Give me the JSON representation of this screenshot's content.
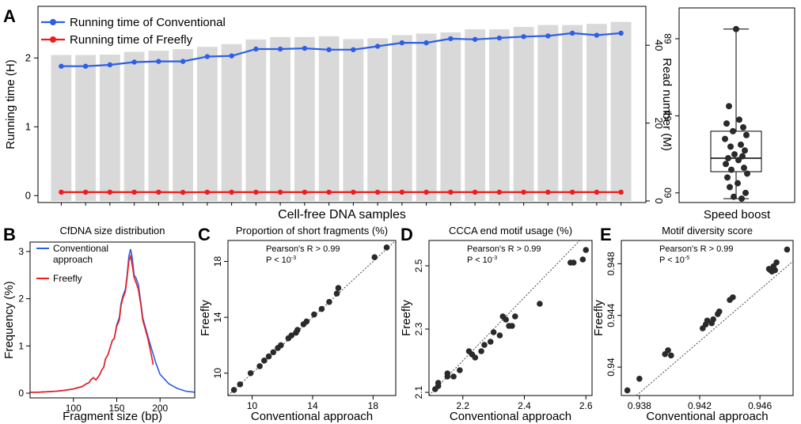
{
  "chart_data": [
    {
      "id": "A",
      "letter": "A",
      "type": "bar+line",
      "title": "",
      "xlabel": "Cell-free DNA samples",
      "ylabel": "Running time (H)",
      "y2label": "Read number (M)",
      "ylim": [
        -0.1,
        2.75
      ],
      "yticks": [
        0,
        1,
        2
      ],
      "y2lim": [
        0,
        50
      ],
      "y2ticks": [
        0,
        20,
        40
      ],
      "bars_read_number_M": [
        37.5,
        37.5,
        37.6,
        38.3,
        38.6,
        39.0,
        39.6,
        40.3,
        41.5,
        42.1,
        42.1,
        42.3,
        41.6,
        41.8,
        42.6,
        43.0,
        43.3,
        44.1,
        44.1,
        44.7,
        45.2,
        45.2,
        45.5,
        46.0
      ],
      "legend": [
        "Running time of Conventional",
        "Running time of Freefly"
      ],
      "series": [
        {
          "name": "Running time of Conventional",
          "color": "#2d5ee6",
          "values": [
            1.88,
            1.88,
            1.9,
            1.94,
            1.95,
            1.95,
            2.02,
            2.03,
            2.13,
            2.13,
            2.14,
            2.12,
            2.12,
            2.17,
            2.22,
            2.22,
            2.28,
            2.27,
            2.29,
            2.31,
            2.32,
            2.36,
            2.33,
            2.36
          ]
        },
        {
          "name": "Running time of Freefly",
          "color": "#ee1c1c",
          "values": [
            0.05,
            0.05,
            0.05,
            0.05,
            0.05,
            0.048,
            0.05,
            0.05,
            0.05,
            0.05,
            0.05,
            0.05,
            0.05,
            0.05,
            0.05,
            0.05,
            0.05,
            0.05,
            0.05,
            0.05,
            0.05,
            0.05,
            0.05,
            0.05
          ]
        }
      ]
    },
    {
      "id": "A2",
      "type": "box",
      "xlabel": "Speed boost",
      "ylim": [
        59.5,
        69.6
      ],
      "yticks": [
        60,
        64,
        68
      ],
      "box": {
        "min": 59.7,
        "q1": 61.1,
        "median": 61.8,
        "q3": 63.2,
        "max": 68.5
      },
      "points": [
        68.5,
        64.5,
        63.8,
        63.6,
        63.4,
        63.2,
        63.0,
        62.8,
        62.5,
        62.4,
        62.2,
        62.0,
        61.9,
        61.8,
        61.7,
        61.5,
        61.3,
        61.2,
        61.0,
        60.8,
        60.5,
        60.3,
        60.0,
        59.8,
        59.7
      ]
    },
    {
      "id": "B",
      "letter": "B",
      "type": "line",
      "title": "CfDNA size distribution",
      "xlabel": "Fragment size (bp)",
      "ylabel": "Frequency (%)",
      "xlim": [
        50,
        240
      ],
      "xticks": [
        100,
        150,
        200
      ],
      "ylim": [
        -0.1,
        3.2
      ],
      "yticks": [
        0,
        1,
        2,
        3
      ],
      "legend": [
        "Conventional approach",
        "Freefly"
      ],
      "series": [
        {
          "name": "Conventional approach",
          "color": "#2d5ee6",
          "x": [
            50,
            60,
            70,
            80,
            90,
            100,
            110,
            115,
            118,
            120,
            123,
            126,
            130,
            133,
            135,
            137,
            140,
            143,
            145,
            147,
            150,
            152,
            153,
            155,
            157,
            160,
            162,
            164,
            166,
            167,
            168,
            170,
            172,
            175,
            178,
            180,
            183,
            186,
            190,
            195,
            200,
            210,
            220,
            230,
            240
          ],
          "y": [
            0.02,
            0.02,
            0.03,
            0.04,
            0.06,
            0.09,
            0.14,
            0.2,
            0.22,
            0.28,
            0.33,
            0.28,
            0.38,
            0.5,
            0.55,
            0.72,
            0.82,
            1.0,
            1.12,
            1.15,
            1.45,
            1.55,
            1.6,
            1.9,
            2.05,
            2.2,
            2.5,
            2.9,
            3.05,
            2.95,
            2.85,
            2.5,
            2.45,
            2.3,
            1.9,
            1.6,
            1.4,
            1.2,
            0.95,
            0.65,
            0.4,
            0.2,
            0.1,
            0.04,
            0.02
          ]
        },
        {
          "name": "Freefly",
          "color": "#ee1c1c",
          "x": [
            50,
            60,
            70,
            80,
            90,
            100,
            110,
            115,
            118,
            120,
            123,
            126,
            130,
            133,
            135,
            137,
            140,
            143,
            145,
            147,
            150,
            152,
            153,
            155,
            157,
            160,
            162,
            164,
            166,
            167,
            168,
            170,
            172,
            175,
            178,
            180,
            183,
            186,
            190,
            192
          ],
          "y": [
            0.02,
            0.02,
            0.03,
            0.04,
            0.06,
            0.09,
            0.14,
            0.2,
            0.22,
            0.28,
            0.33,
            0.28,
            0.38,
            0.5,
            0.55,
            0.72,
            0.82,
            1.0,
            1.12,
            1.15,
            1.42,
            1.5,
            1.55,
            1.85,
            2.0,
            2.15,
            2.45,
            2.8,
            2.9,
            2.8,
            2.7,
            2.45,
            2.35,
            2.2,
            1.85,
            1.55,
            1.35,
            1.15,
            0.8,
            0.6
          ]
        }
      ]
    },
    {
      "id": "C",
      "letter": "C",
      "type": "scatter",
      "title": "Proportion of short fragments (%)",
      "xlabel": "Conventional approach",
      "ylabel": "Freefly",
      "xlim": [
        8.4,
        19.5
      ],
      "ylim": [
        8.4,
        19.5
      ],
      "xticks": [
        10,
        14,
        18
      ],
      "yticks": [
        10,
        14,
        18
      ],
      "annotation_r": "Pearson's R > 0.99",
      "annotation_p": "P < 10",
      "annotation_p_exp": "-3",
      "x": [
        8.8,
        9.2,
        9.9,
        10.5,
        10.8,
        11.1,
        11.4,
        11.7,
        11.9,
        12.4,
        12.6,
        12.9,
        13.0,
        13.4,
        13.6,
        14.1,
        14.6,
        15.1,
        15.6,
        15.7,
        18.1,
        18.9
      ],
      "y": [
        8.8,
        9.2,
        10.0,
        10.5,
        10.9,
        11.2,
        11.5,
        11.8,
        12.0,
        12.5,
        12.7,
        12.9,
        13.1,
        13.5,
        13.7,
        14.2,
        14.6,
        15.1,
        15.7,
        16.1,
        18.3,
        19.0
      ]
    },
    {
      "id": "D",
      "letter": "D",
      "type": "scatter",
      "title": "CCCA end motif usage (%)",
      "xlabel": "Conventional approach",
      "ylabel": "Freefly",
      "xlim": [
        2.09,
        2.62
      ],
      "ylim": [
        2.09,
        2.58
      ],
      "xticks": [
        2.2,
        2.4,
        2.6
      ],
      "yticks": [
        2.1,
        2.3,
        2.5
      ],
      "annotation_r": "Pearson's R > 0.99",
      "annotation_p": "P < 10",
      "annotation_p_exp": "-3",
      "x": [
        2.11,
        2.12,
        2.12,
        2.15,
        2.15,
        2.17,
        2.19,
        2.22,
        2.23,
        2.24,
        2.26,
        2.27,
        2.29,
        2.3,
        2.32,
        2.33,
        2.34,
        2.35,
        2.36,
        2.37,
        2.45,
        2.55,
        2.56,
        2.59,
        2.6
      ],
      "y": [
        2.11,
        2.13,
        2.12,
        2.16,
        2.15,
        2.15,
        2.17,
        2.23,
        2.22,
        2.21,
        2.23,
        2.25,
        2.26,
        2.29,
        2.28,
        2.34,
        2.33,
        2.31,
        2.31,
        2.34,
        2.38,
        2.51,
        2.51,
        2.52,
        2.55
      ]
    },
    {
      "id": "E",
      "letter": "E",
      "type": "scatter",
      "title": "Motif diversity score",
      "xlabel": "Conventional approach",
      "ylabel": "Freefly",
      "xlim": [
        0.9368,
        0.9482
      ],
      "ylim": [
        0.9378,
        0.9498
      ],
      "xticks": [
        0.938,
        0.942,
        0.946
      ],
      "yticks": [
        0.94,
        0.944,
        0.948
      ],
      "annotation_r": "Pearson's R > 0.99",
      "annotation_p": "P < 10",
      "annotation_p_exp": "-5",
      "x": [
        0.9372,
        0.938,
        0.9397,
        0.9399,
        0.9401,
        0.9422,
        0.9424,
        0.9425,
        0.9428,
        0.9429,
        0.9432,
        0.9433,
        0.944,
        0.9442,
        0.9466,
        0.9467,
        0.9468,
        0.9469,
        0.947,
        0.9471,
        0.9478
      ],
      "y": [
        0.9382,
        0.9391,
        0.941,
        0.9413,
        0.9409,
        0.943,
        0.9433,
        0.9436,
        0.9434,
        0.9437,
        0.9441,
        0.9443,
        0.9452,
        0.9454,
        0.9476,
        0.9475,
        0.9474,
        0.9478,
        0.9475,
        0.9481,
        0.9491
      ]
    }
  ]
}
